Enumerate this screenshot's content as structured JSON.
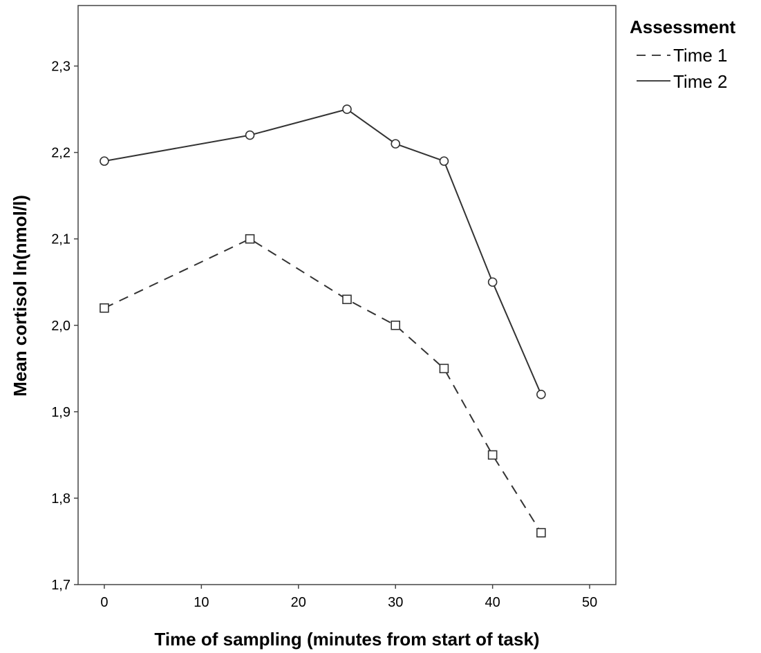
{
  "chart_data": {
    "type": "line",
    "xlabel": "Time of sampling (minutes from start of task)",
    "ylabel": "Mean cortisol ln(nmol/l)",
    "xlim": [
      -2.7,
      52.7
    ],
    "ylim": [
      1.7,
      2.37
    ],
    "x_ticks": [
      0,
      10,
      20,
      30,
      40,
      50
    ],
    "x_tick_labels": [
      "0",
      "10",
      "20",
      "30",
      "40",
      "50"
    ],
    "y_ticks": [
      1.7,
      1.8,
      1.9,
      2.0,
      2.1,
      2.2,
      2.3
    ],
    "y_tick_labels": [
      "1,7",
      "1,8",
      "1,9",
      "2,0",
      "2,1",
      "2,2",
      "2,3"
    ],
    "grid": false,
    "legend": {
      "title": "Assessment",
      "placement": "outside-right-top"
    },
    "series": [
      {
        "name": "Time 1",
        "line_style": "dashed",
        "marker": "square",
        "x": [
          0,
          15,
          25,
          30,
          35,
          40,
          45
        ],
        "y": [
          2.02,
          2.1,
          2.03,
          2.0,
          1.95,
          1.85,
          1.76
        ]
      },
      {
        "name": "Time 2",
        "line_style": "solid",
        "marker": "circle",
        "x": [
          0,
          15,
          25,
          30,
          35,
          40,
          45
        ],
        "y": [
          2.19,
          2.22,
          2.25,
          2.21,
          2.19,
          2.05,
          1.92
        ]
      }
    ]
  }
}
